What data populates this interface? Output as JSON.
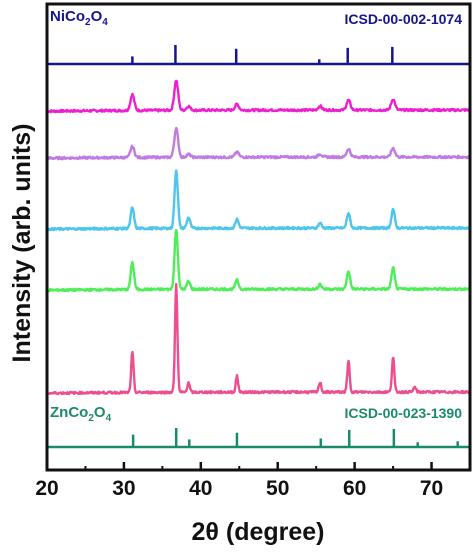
{
  "chart_data": {
    "type": "line",
    "xlabel": "2θ (degree)",
    "ylabel": "Intensity (arb. units)",
    "xlim": [
      20,
      75
    ],
    "x_ticks": [
      "20",
      "30",
      "40",
      "50",
      "60",
      "70"
    ],
    "x_tick_values": [
      20,
      30,
      40,
      50,
      60,
      70
    ],
    "y_ticks_shown": false,
    "grid": false,
    "colors": {
      "axis": "#111111",
      "nico_ref": "#15158f",
      "znco_ref": "#1a8a6b",
      "pattern_1": "#ee1fd0",
      "pattern_2": "#c07ae2",
      "pattern_3": "#4cc6ee",
      "pattern_4": "#4dee56",
      "pattern_5": "#ee4d8f"
    },
    "reference_top": {
      "label_formula": "NiCo",
      "label_sub_1": "2",
      "label_mid": "O",
      "label_sub_2": "4",
      "card": "ICSD-00-002-1074",
      "peaks": [
        {
          "x": 31.1,
          "h": 0.4
        },
        {
          "x": 36.7,
          "h": 1.0
        },
        {
          "x": 44.6,
          "h": 0.8
        },
        {
          "x": 55.4,
          "h": 0.25
        },
        {
          "x": 59.1,
          "h": 0.85
        },
        {
          "x": 64.9,
          "h": 0.9
        }
      ]
    },
    "reference_bottom": {
      "label_formula": "ZnCo",
      "label_sub_1": "2",
      "label_mid": "O",
      "label_sub_2": "4",
      "card": "ICSD-00-023-1390",
      "peaks": [
        {
          "x": 31.2,
          "h": 0.65
        },
        {
          "x": 36.8,
          "h": 1.0
        },
        {
          "x": 38.5,
          "h": 0.4
        },
        {
          "x": 44.7,
          "h": 0.75
        },
        {
          "x": 55.6,
          "h": 0.45
        },
        {
          "x": 59.3,
          "h": 0.9
        },
        {
          "x": 65.1,
          "h": 0.95
        },
        {
          "x": 68.2,
          "h": 0.25
        },
        {
          "x": 73.4,
          "h": 0.3
        }
      ]
    },
    "series": [
      {
        "peaks": [
          {
            "x": 31.1,
            "h": 16
          },
          {
            "x": 36.8,
            "h": 30
          },
          {
            "x": 38.4,
            "h": 4
          },
          {
            "x": 44.7,
            "h": 6
          },
          {
            "x": 55.5,
            "h": 4
          },
          {
            "x": 59.2,
            "h": 10
          },
          {
            "x": 65.0,
            "h": 11
          }
        ]
      },
      {
        "peaks": [
          {
            "x": 31.1,
            "h": 11
          },
          {
            "x": 36.8,
            "h": 29
          },
          {
            "x": 38.4,
            "h": 3
          },
          {
            "x": 44.7,
            "h": 5
          },
          {
            "x": 55.5,
            "h": 3
          },
          {
            "x": 59.2,
            "h": 8
          },
          {
            "x": 65.0,
            "h": 9
          }
        ]
      },
      {
        "peaks": [
          {
            "x": 31.1,
            "h": 21
          },
          {
            "x": 36.8,
            "h": 58
          },
          {
            "x": 38.4,
            "h": 11
          },
          {
            "x": 44.7,
            "h": 9
          },
          {
            "x": 55.5,
            "h": 5
          },
          {
            "x": 59.2,
            "h": 15
          },
          {
            "x": 65.0,
            "h": 19
          }
        ]
      },
      {
        "peaks": [
          {
            "x": 31.1,
            "h": 27
          },
          {
            "x": 36.8,
            "h": 60
          },
          {
            "x": 38.4,
            "h": 8
          },
          {
            "x": 44.7,
            "h": 9
          },
          {
            "x": 55.5,
            "h": 5
          },
          {
            "x": 59.2,
            "h": 18
          },
          {
            "x": 65.0,
            "h": 21
          }
        ]
      },
      {
        "peaks": [
          {
            "x": 31.1,
            "h": 40
          },
          {
            "x": 36.8,
            "h": 108
          },
          {
            "x": 38.4,
            "h": 10
          },
          {
            "x": 44.7,
            "h": 16
          },
          {
            "x": 55.5,
            "h": 10
          },
          {
            "x": 59.2,
            "h": 31
          },
          {
            "x": 65.0,
            "h": 35
          },
          {
            "x": 67.8,
            "h": 5
          }
        ]
      }
    ]
  }
}
